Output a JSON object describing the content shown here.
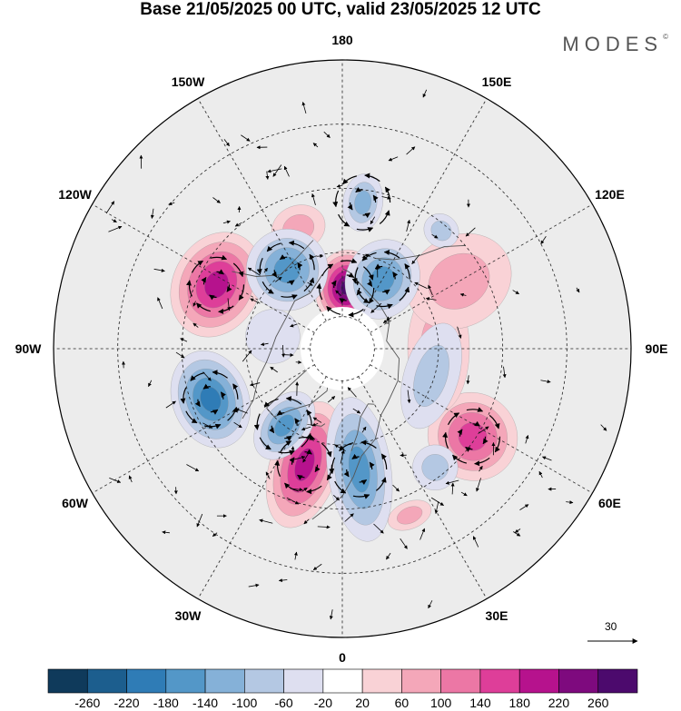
{
  "title": "Base 21/05/2025 00 UTC, valid 23/05/2025 12 UTC",
  "brand": "MODES",
  "brand_mark": "©",
  "longitude_labels": [
    {
      "text": "180",
      "lon": 180
    },
    {
      "text": "150E",
      "lon": 150
    },
    {
      "text": "120E",
      "lon": 120
    },
    {
      "text": "90E",
      "lon": 90
    },
    {
      "text": "60E",
      "lon": 60
    },
    {
      "text": "30E",
      "lon": 30
    },
    {
      "text": "0",
      "lon": 0
    },
    {
      "text": "30W",
      "lon": -30
    },
    {
      "text": "60W",
      "lon": -60
    },
    {
      "text": "90W",
      "lon": -90
    },
    {
      "text": "120W",
      "lon": -120
    },
    {
      "text": "150W",
      "lon": -150
    }
  ],
  "reference_vector": {
    "value": "30"
  },
  "colorbar": {
    "tick_labels": [
      "-260",
      "-220",
      "-180",
      "-140",
      "-100",
      "-60",
      "-20",
      "20",
      "60",
      "100",
      "140",
      "180",
      "220",
      "260"
    ],
    "colors": [
      "#0f3a5b",
      "#1c5e8e",
      "#2f7cb6",
      "#5397c8",
      "#85b1d8",
      "#b4c8e3",
      "#dedff0",
      "#ffffff",
      "#f9d2d6",
      "#f4a7b9",
      "#ec77a5",
      "#de3e99",
      "#b6128d",
      "#7e0a7e",
      "#4c0a6d"
    ]
  },
  "anomalies": [
    {
      "lon": 176,
      "lat": 71,
      "value": 250,
      "rx": 35,
      "ry": 42
    },
    {
      "lon": -117,
      "lat": 46,
      "value": 200,
      "rx": 60,
      "ry": 48
    },
    {
      "lon": -18,
      "lat": 52,
      "value": 200,
      "rx": 38,
      "ry": 72
    },
    {
      "lon": 56,
      "lat": 41,
      "value": 130,
      "rx": 48,
      "ry": 50
    },
    {
      "lon": 90,
      "lat": 60,
      "value": 70,
      "rx": 70,
      "ry": 34
    },
    {
      "lon": 120,
      "lat": 48,
      "value": 60,
      "rx": 50,
      "ry": 60
    },
    {
      "lon": -160,
      "lat": 50,
      "value": 70,
      "rx": 30,
      "ry": 25
    },
    {
      "lon": 22,
      "lat": 34,
      "value": 60,
      "rx": 25,
      "ry": 15
    },
    {
      "lon": 172,
      "lat": 44,
      "value": -120,
      "rx": 22,
      "ry": 32
    },
    {
      "lon": -145,
      "lat": 60,
      "value": -150,
      "rx": 45,
      "ry": 45
    },
    {
      "lon": 150,
      "lat": 65,
      "value": -140,
      "rx": 40,
      "ry": 45
    },
    {
      "lon": -69,
      "lat": 46,
      "value": -170,
      "rx": 55,
      "ry": 42
    },
    {
      "lon": -37,
      "lat": 60,
      "value": -150,
      "rx": 28,
      "ry": 42
    },
    {
      "lon": 8,
      "lat": 52,
      "value": -140,
      "rx": 35,
      "ry": 80
    },
    {
      "lon": 73,
      "lat": 61,
      "value": -80,
      "rx": 60,
      "ry": 30
    },
    {
      "lon": 38,
      "lat": 43,
      "value": -80,
      "rx": 25,
      "ry": 25
    },
    {
      "lon": 140,
      "lat": 42,
      "value": -60,
      "rx": 20,
      "ry": 18
    },
    {
      "lon": -100,
      "lat": 68,
      "value": -20,
      "rx": 30,
      "ry": 30
    }
  ],
  "circulations": [
    {
      "lon": 176,
      "lat": 71,
      "sense": "cw"
    },
    {
      "lon": -117,
      "lat": 46,
      "sense": "cw"
    },
    {
      "lon": -18,
      "lat": 52,
      "sense": "cw"
    },
    {
      "lon": 56,
      "lat": 41,
      "sense": "cw"
    },
    {
      "lon": -145,
      "lat": 60,
      "sense": "ccw"
    },
    {
      "lon": 150,
      "lat": 65,
      "sense": "ccw"
    },
    {
      "lon": -69,
      "lat": 46,
      "sense": "ccw"
    },
    {
      "lon": -37,
      "lat": 60,
      "sense": "ccw"
    },
    {
      "lon": 8,
      "lat": 52,
      "sense": "ccw"
    },
    {
      "lon": 172,
      "lat": 44,
      "sense": "ccw"
    }
  ]
}
